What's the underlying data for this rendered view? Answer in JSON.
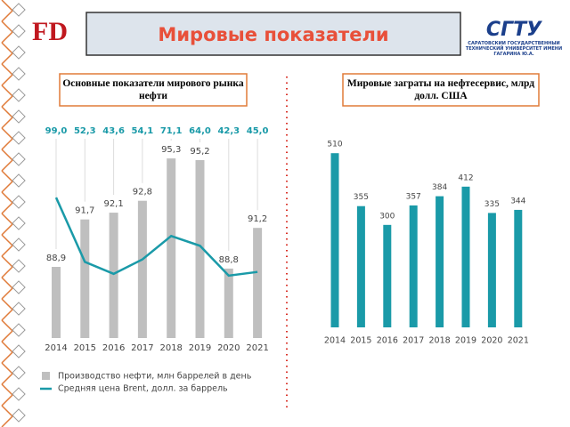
{
  "header": {
    "logo": "FD",
    "title": "Мировые показатели",
    "university_logo": "СГТУ",
    "university": "САРАТОВСКИЙ ГОСУДАРСТВЕННЫЙ ТЕХНИЧЕСКИЙ УНИВЕРСИТЕТ ИМЕНИ ГАГАРИНА Ю.А."
  },
  "chart_data": [
    {
      "type": "bar",
      "title": "Основные показатели мирового рынка нефти",
      "categories": [
        "2014",
        "2015",
        "2016",
        "2017",
        "2018",
        "2019",
        "2020",
        "2021"
      ],
      "ylim": [
        84.7,
        97.3
      ],
      "y2lim": [
        -3,
        152
      ],
      "legend": "bottom",
      "series": [
        {
          "name": "Производство нефти, млн баррелей в день",
          "type": "bar",
          "color": "#bfbfbf",
          "values": [
            88.9,
            91.7,
            92.1,
            92.8,
            95.3,
            95.2,
            88.8,
            91.2
          ],
          "value_labels": [
            "88,9",
            "91,7",
            "92,1",
            "92,8",
            "95,3",
            "95,2",
            "88,8",
            "91,2"
          ]
        },
        {
          "name": "Средняя цена Brent, долл. за баррель",
          "type": "line",
          "axis": "y2",
          "color": "#1a9aa8",
          "values": [
            99.0,
            52.3,
            43.6,
            54.1,
            71.1,
            64.0,
            42.3,
            45.0
          ],
          "value_labels": [
            "99,0",
            "52,3",
            "43,6",
            "54,1",
            "71,1",
            "64,0",
            "42,3",
            "45,0"
          ]
        }
      ]
    },
    {
      "type": "bar",
      "title": "Мировые заграты на нефтесервис, млрд долл. США",
      "categories": [
        "2014",
        "2015",
        "2016",
        "2017",
        "2018",
        "2019",
        "2020",
        "2021"
      ],
      "ylim": [
        0,
        560
      ],
      "color": "#1a9aa8",
      "values": [
        510,
        355,
        300,
        357,
        384,
        412,
        335,
        344
      ]
    }
  ]
}
